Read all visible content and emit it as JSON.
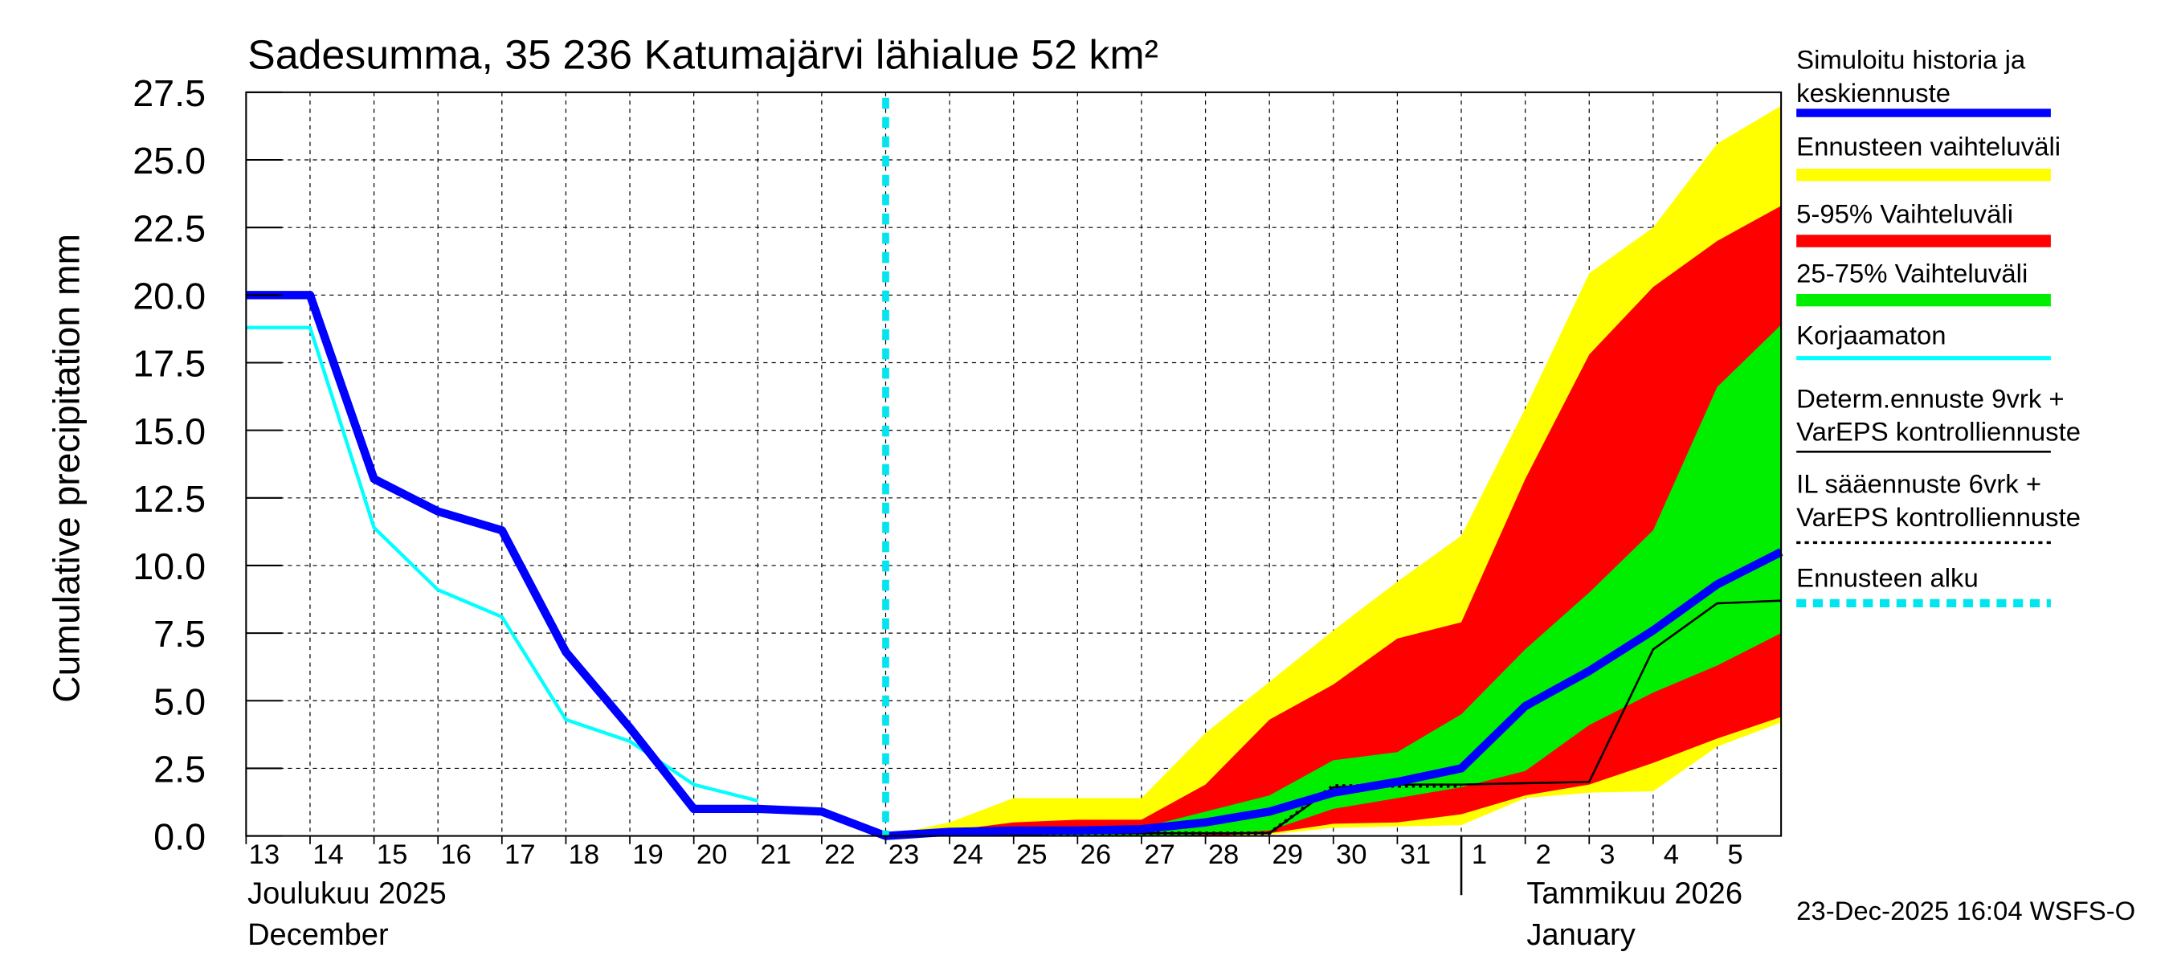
{
  "chart_data": {
    "type": "area",
    "title": "Sadesumma, 35 236 Katumajärvi lähialue 52 km²",
    "ylabel": "Cumulative precipitation   mm",
    "xlabel": "",
    "ylim": [
      0,
      27.5
    ],
    "yticks": [
      "0.0",
      "2.5",
      "5.0",
      "7.5",
      "10.0",
      "12.5",
      "15.0",
      "17.5",
      "20.0",
      "22.5",
      "25.0",
      "27.5"
    ],
    "grid": true,
    "legend_placement": "right",
    "x": [
      "2025-12-13",
      "2025-12-14",
      "2025-12-15",
      "2025-12-16",
      "2025-12-17",
      "2025-12-18",
      "2025-12-19",
      "2025-12-20",
      "2025-12-21",
      "2025-12-22",
      "2025-12-23",
      "2025-12-24",
      "2025-12-25",
      "2025-12-26",
      "2025-12-27",
      "2025-12-28",
      "2025-12-29",
      "2025-12-30",
      "2025-12-31",
      "2026-01-01",
      "2026-01-02",
      "2026-01-03",
      "2026-01-04",
      "2026-01-05",
      "2026-01-06"
    ],
    "xtick_labels": [
      "13",
      "14",
      "15",
      "16",
      "17",
      "18",
      "19",
      "20",
      "21",
      "22",
      "23",
      "24",
      "25",
      "26",
      "27",
      "28",
      "29",
      "30",
      "31",
      "1",
      "2",
      "3",
      "4",
      "5"
    ],
    "month_labels": [
      {
        "line1": "Joulukuu  2025",
        "line2": "December"
      },
      {
        "line1": "Tammikuu  2026",
        "line2": "January"
      }
    ],
    "forecast_start": "2025-12-23",
    "bands": [
      {
        "name": "Ennusteen vaihteluväli",
        "color": "#ffff00",
        "upper": [
          null,
          null,
          null,
          null,
          null,
          null,
          null,
          null,
          null,
          null,
          0,
          0.5,
          1.4,
          1.4,
          1.4,
          3.8,
          5.7,
          7.6,
          9.4,
          11.1,
          15.8,
          20.8,
          22.5,
          25.6,
          27.0
        ],
        "lower": [
          null,
          null,
          null,
          null,
          null,
          null,
          null,
          null,
          null,
          null,
          0,
          0,
          0,
          0,
          0,
          0,
          0.05,
          0.3,
          0.35,
          0.4,
          1.4,
          1.6,
          1.65,
          3.3,
          4.2
        ]
      },
      {
        "name": "5-95% Vaihteluväli",
        "color": "#ff0000",
        "upper": [
          null,
          null,
          null,
          null,
          null,
          null,
          null,
          null,
          null,
          null,
          0,
          0.2,
          0.5,
          0.6,
          0.6,
          1.9,
          4.3,
          5.6,
          7.3,
          7.9,
          13.2,
          17.8,
          20.3,
          22.0,
          23.3
        ],
        "lower": [
          null,
          null,
          null,
          null,
          null,
          null,
          null,
          null,
          null,
          null,
          0,
          0,
          0,
          0,
          0,
          0,
          0.1,
          0.45,
          0.5,
          0.8,
          1.5,
          1.9,
          2.7,
          3.6,
          4.4
        ]
      },
      {
        "name": "25-75% Vaihteluväli",
        "color": "#00ee00",
        "upper": [
          null,
          null,
          null,
          null,
          null,
          null,
          null,
          null,
          null,
          null,
          0,
          0.1,
          0.2,
          0.25,
          0.3,
          0.9,
          1.5,
          2.8,
          3.1,
          4.5,
          6.9,
          9.0,
          11.3,
          16.6,
          18.9
        ],
        "lower": [
          null,
          null,
          null,
          null,
          null,
          null,
          null,
          null,
          null,
          null,
          0,
          0,
          0,
          0,
          0,
          0.05,
          0.2,
          1.0,
          1.4,
          1.8,
          2.4,
          4.1,
          5.3,
          6.3,
          7.5
        ]
      }
    ],
    "series": [
      {
        "name": "Korjaamaton",
        "color": "#00ffff",
        "style": "solid",
        "values": [
          18.8,
          18.8,
          11.4,
          9.1,
          8.1,
          4.3,
          3.5,
          1.9,
          1.3,
          null,
          null,
          null,
          null,
          null,
          null,
          null,
          null,
          null,
          null,
          null,
          null,
          null,
          null,
          null,
          null
        ]
      },
      {
        "name": "IL sääennuste 6vrk  +\n  VarEPS kontrolliennuste",
        "color": "#000000",
        "style": "dotted",
        "values": [
          null,
          null,
          null,
          null,
          null,
          null,
          null,
          null,
          null,
          null,
          0,
          0.05,
          0.05,
          0.1,
          0.1,
          0.1,
          0.1,
          1.85,
          1.85,
          1.85,
          null,
          null,
          null,
          null,
          null
        ]
      },
      {
        "name": "Determ.ennuste 9vrk +\nVarEPS kontrolliennuste",
        "color": "#000000",
        "style": "solid",
        "values": [
          null,
          null,
          null,
          null,
          null,
          null,
          null,
          null,
          null,
          null,
          0,
          0.05,
          0.05,
          0.1,
          0.1,
          0.1,
          0.1,
          1.8,
          1.9,
          1.9,
          1.95,
          2.0,
          6.9,
          8.6,
          8.7
        ]
      },
      {
        "name": "Simuloitu historia ja\nkeskiennuste",
        "color": "#0000ff",
        "style": "thick",
        "values": [
          20.0,
          20.0,
          13.2,
          12.0,
          11.3,
          6.8,
          4.0,
          1.0,
          1.0,
          0.9,
          0,
          0.15,
          0.2,
          0.2,
          0.25,
          0.5,
          0.9,
          1.6,
          2.0,
          2.5,
          4.8,
          6.1,
          7.6,
          9.3,
          10.5
        ]
      }
    ],
    "legend": [
      {
        "label1": "Simuloitu historia ja",
        "label2": "keskiennuste",
        "color": "#0000ff",
        "style": "thick"
      },
      {
        "label1": "Ennusteen vaihteluväli",
        "label2": "",
        "color": "#ffff00",
        "style": "band"
      },
      {
        "label1": "5-95% Vaihteluväli",
        "label2": "",
        "color": "#ff0000",
        "style": "band"
      },
      {
        "label1": "25-75% Vaihteluväli",
        "label2": "",
        "color": "#00ee00",
        "style": "band"
      },
      {
        "label1": "Korjaamaton",
        "label2": "",
        "color": "#00ffff",
        "style": "thin"
      },
      {
        "label1": "Determ.ennuste 9vrk +",
        "label2": "VarEPS kontrolliennuste",
        "color": "#000000",
        "style": "solid"
      },
      {
        "label1": "IL sääennuste 6vrk  +",
        "label2": "  VarEPS kontrolliennuste",
        "color": "#000000",
        "style": "dotted"
      },
      {
        "label1": "Ennusteen alku",
        "label2": "",
        "color": "#00e5ee",
        "style": "dashed"
      }
    ],
    "timestamp": "23-Dec-2025 16:04 WSFS-O"
  }
}
